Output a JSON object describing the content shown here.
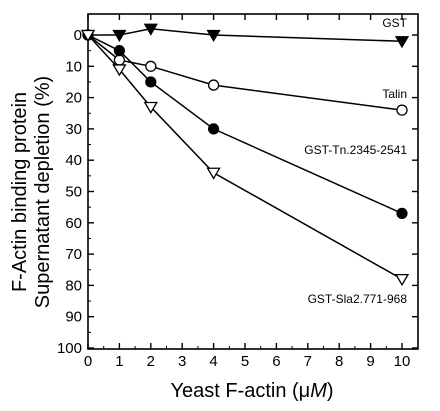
{
  "chart_data": {
    "type": "line",
    "title": "",
    "xlabel": "Yeast F-actin (",
    "xlabel_mu": "μ",
    "xlabel_unit": "M",
    "xlabel_close": ")",
    "ylabel_line1": "F-Actin binding protein",
    "ylabel_line2": "Supernatant depletion (%)",
    "xlim": [
      0,
      10.5
    ],
    "ylim": [
      0,
      100
    ],
    "y_inverted": true,
    "grid": false,
    "legend": "inline labels at right",
    "x_ticks": [
      0,
      1,
      2,
      3,
      4,
      5,
      6,
      7,
      8,
      9,
      10
    ],
    "y_ticks": [
      0,
      10,
      20,
      30,
      40,
      50,
      60,
      70,
      80,
      90,
      100
    ],
    "x_tick_labels": [
      "0",
      "1",
      "2",
      "3",
      "4",
      "5",
      "6",
      "7",
      "8",
      "9",
      "10"
    ],
    "y_tick_labels": [
      "0",
      "10",
      "20",
      "30",
      "40",
      "50",
      "60",
      "70",
      "80",
      "90",
      "100"
    ],
    "series": [
      {
        "name": "GST",
        "marker": "filled-triangle-down",
        "x": [
          0,
          1,
          2,
          4,
          10
        ],
        "y": [
          0,
          0,
          -2,
          0,
          2
        ]
      },
      {
        "name": "Talin",
        "marker": "open-circle",
        "x": [
          0,
          1,
          2,
          4,
          10
        ],
        "y": [
          0,
          8,
          10,
          16,
          24
        ]
      },
      {
        "name": "GST-Tn.2345-2541",
        "marker": "filled-circle",
        "x": [
          0,
          1,
          2,
          4,
          10
        ],
        "y": [
          0,
          5,
          15,
          30,
          57
        ]
      },
      {
        "name": "GST-Sla2.771-968",
        "marker": "open-triangle-down",
        "x": [
          0,
          1,
          2,
          4,
          10
        ],
        "y": [
          0,
          11,
          23,
          44,
          78
        ]
      }
    ]
  }
}
